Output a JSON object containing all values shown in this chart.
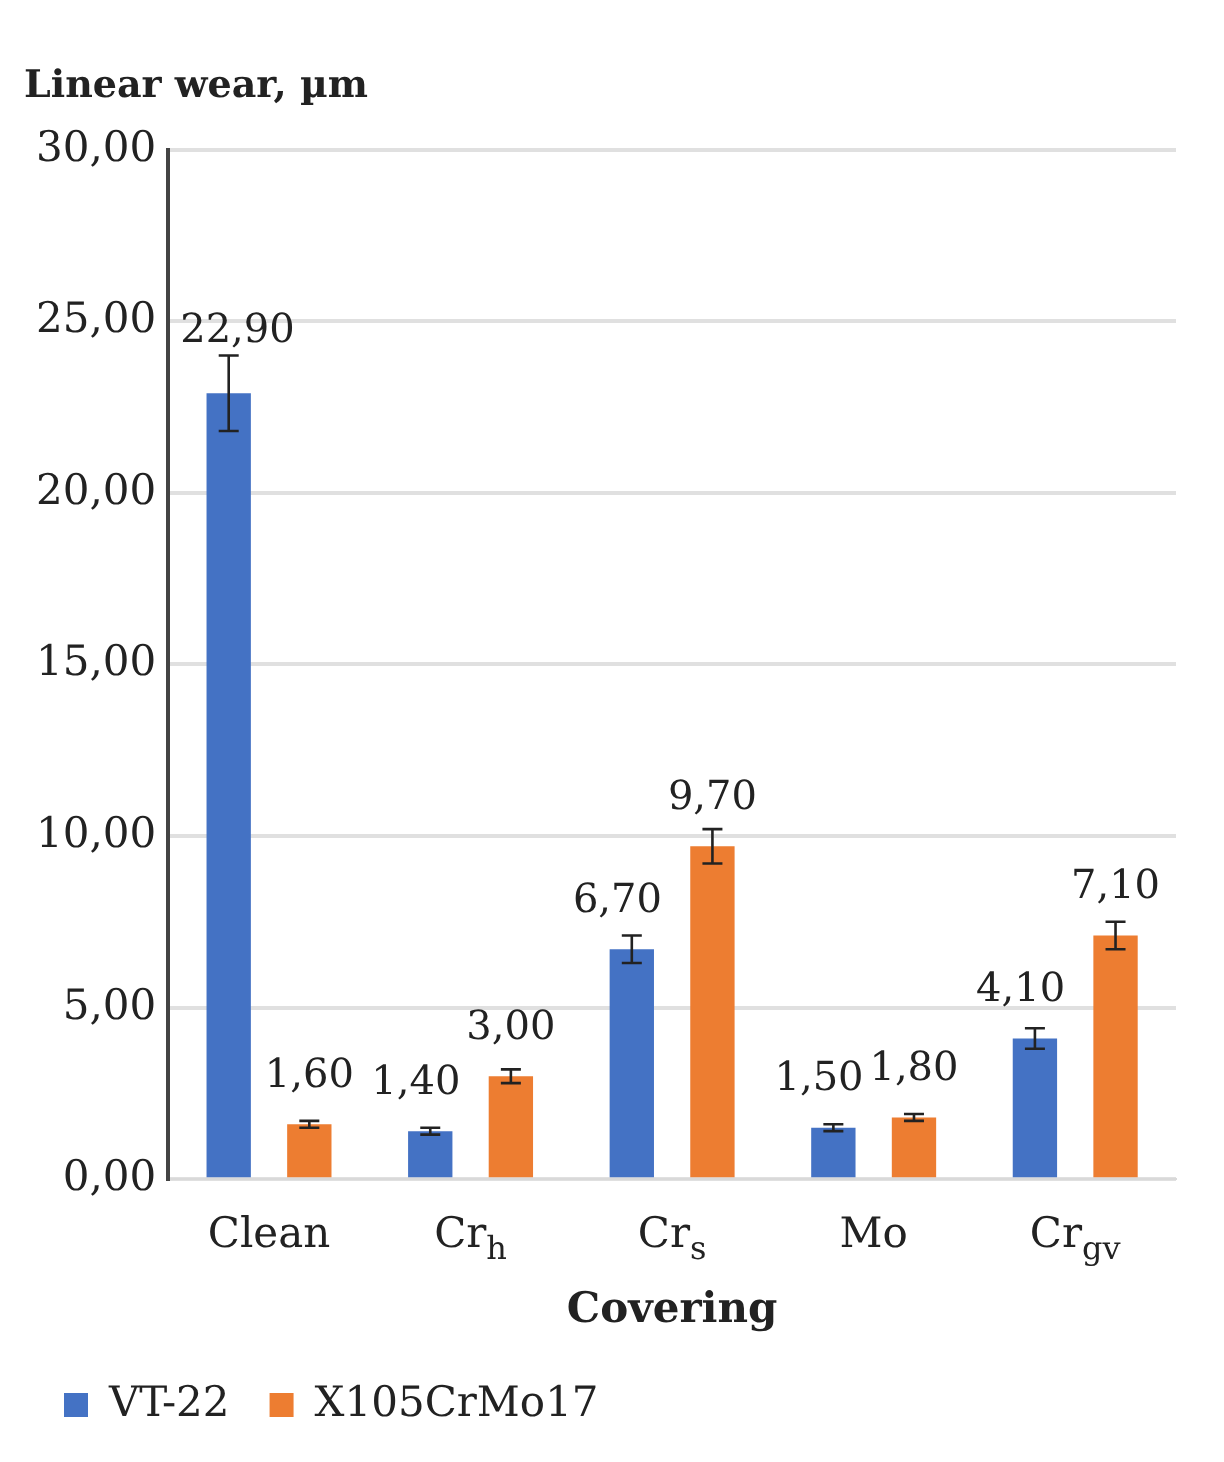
{
  "chart_data": {
    "type": "bar",
    "title": "Linear wear, µm",
    "xlabel": "Covering",
    "categories": [
      "Clean",
      "Cr$_{h}$",
      "Cr$_{s}$",
      "Mo",
      "Cr$_{gv}$"
    ],
    "series": [
      {
        "name": "VT-22",
        "color": "#4472c4",
        "values": [
          22.9,
          1.4,
          6.7,
          1.5,
          4.1
        ],
        "errors": [
          1.1,
          0.1,
          0.4,
          0.1,
          0.3
        ],
        "value_labels": [
          "22,90",
          "1,40",
          "6,70",
          "1,50",
          "4,10"
        ]
      },
      {
        "name": "X105CrMo17",
        "color": "#ed7d31",
        "values": [
          1.6,
          3.0,
          9.7,
          1.8,
          7.1
        ],
        "errors": [
          0.1,
          0.2,
          0.5,
          0.1,
          0.4
        ],
        "value_labels": [
          "1,60",
          "3,00",
          "9,70",
          "1,80",
          "7,10"
        ]
      }
    ],
    "ylim": [
      0,
      30
    ],
    "yticks": [
      {
        "value": 0,
        "label": "0,00"
      },
      {
        "value": 5,
        "label": "5,00"
      },
      {
        "value": 10,
        "label": "10,00"
      },
      {
        "value": 15,
        "label": "15,00"
      },
      {
        "value": 20,
        "label": "20,00"
      },
      {
        "value": 25,
        "label": "25,00"
      },
      {
        "value": 30,
        "label": "30,00"
      }
    ],
    "grid": "y",
    "legend": "bottom"
  }
}
